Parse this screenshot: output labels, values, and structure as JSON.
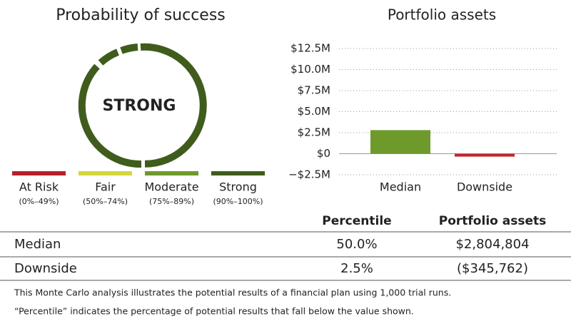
{
  "gauge": {
    "title": "Probability of success",
    "status": "STRONG",
    "legend": [
      {
        "label": "At Risk",
        "range": "(0%–49%)",
        "color": "#b5202a"
      },
      {
        "label": "Fair",
        "range": "(50%–74%)",
        "color": "#d4d63c"
      },
      {
        "label": "Moderate",
        "range": "(75%–89%)",
        "color": "#6e9a2c"
      },
      {
        "label": "Strong",
        "range": "(90%–100%)",
        "color": "#3f5c1c"
      }
    ]
  },
  "chart_data": {
    "type": "bar",
    "title": "Portfolio assets",
    "categories": [
      "Median",
      "Downside"
    ],
    "values": [
      2804804,
      -345762
    ],
    "colors": [
      "#6e9a2c",
      "#c0272d"
    ],
    "ylim": [
      -2500000,
      12500000
    ],
    "yticks": [
      {
        "value": -2500000,
        "label": "−$2.5M"
      },
      {
        "value": 0,
        "label": "$0"
      },
      {
        "value": 2500000,
        "label": "$2.5M"
      },
      {
        "value": 5000000,
        "label": "$5.0M"
      },
      {
        "value": 7500000,
        "label": "$7.5M"
      },
      {
        "value": 10000000,
        "label": "$10.0M"
      },
      {
        "value": 12500000,
        "label": "$12.5M"
      }
    ],
    "grid": true
  },
  "table": {
    "header": [
      "Percentile",
      "Portfolio assets"
    ],
    "rows": [
      [
        "Median",
        "50.0%",
        "$2,804,804"
      ],
      [
        "Downside",
        "2.5%",
        "($345,762)"
      ]
    ]
  },
  "notes": [
    "This Monte Carlo analysis illustrates the potential results of a financial plan using 1,000 trial runs.",
    "“Percentile” indicates the percentage of potential results that fall below the value shown."
  ]
}
